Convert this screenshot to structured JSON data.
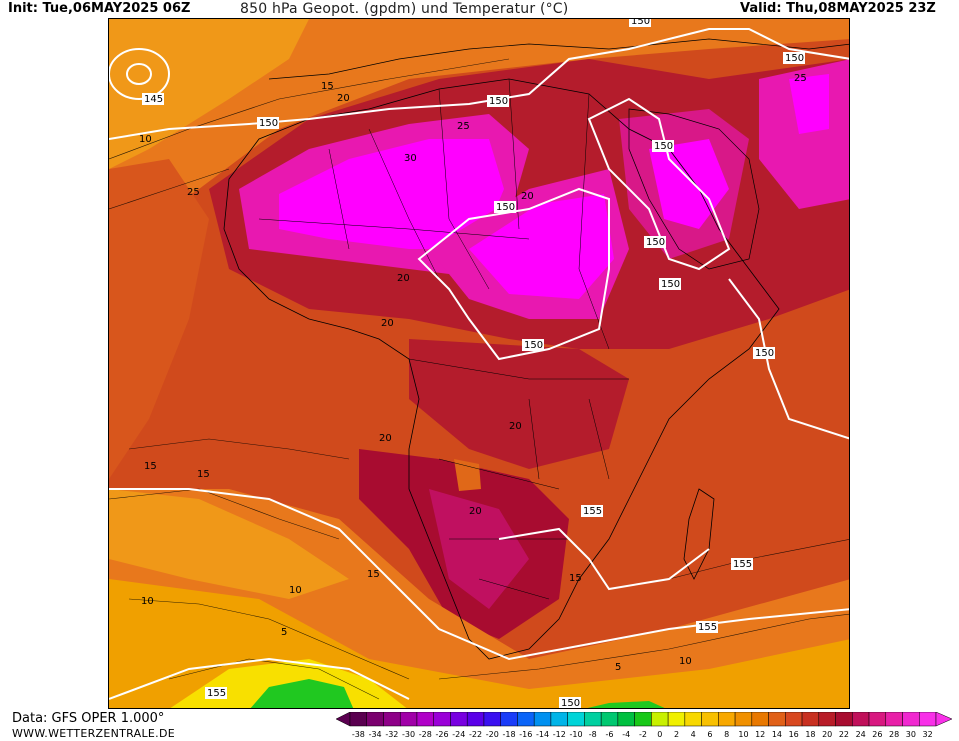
{
  "header": {
    "init": "Init: Tue,06MAY2025 06Z",
    "title": "850 hPa Geopot. (gpdm) und Temperatur (°C)",
    "valid": "Valid: Thu,08MAY2025 23Z"
  },
  "footer": {
    "data_source": "Data: GFS OPER 1.000°",
    "website": "WWW.WETTERZENTRALE.DE"
  },
  "geopotential_labels": [
    "145",
    "150",
    "150",
    "150",
    "150",
    "150",
    "150",
    "150",
    "150",
    "150",
    "150",
    "155",
    "155",
    "155",
    "155",
    "150"
  ],
  "temperature_labels": [
    "10",
    "15",
    "20",
    "25",
    "30",
    "25",
    "20",
    "20",
    "20",
    "20",
    "20",
    "20",
    "25",
    "15",
    "15",
    "15",
    "10",
    "10",
    "5",
    "5",
    "10",
    "15"
  ],
  "colorbar": {
    "ticks": [
      "-38",
      "-34",
      "-32",
      "-30",
      "-28",
      "-26",
      "-24",
      "-22",
      "-20",
      "-18",
      "-16",
      "-14",
      "-12",
      "-10",
      "-8",
      "-6",
      "-4",
      "-2",
      "0",
      "2",
      "4",
      "6",
      "8",
      "10",
      "12",
      "14",
      "16",
      "18",
      "20",
      "22",
      "24",
      "26",
      "28",
      "30",
      "32"
    ],
    "colors": [
      "#5a0050",
      "#7a006e",
      "#8e0088",
      "#a000a8",
      "#b000c8",
      "#9a00d8",
      "#7800e0",
      "#5a00e8",
      "#3a10f0",
      "#1a3cf8",
      "#0a64f8",
      "#0090f0",
      "#00b4e8",
      "#00d4d8",
      "#00d0a0",
      "#00c870",
      "#00c040",
      "#18c818",
      "#c8f000",
      "#f0f000",
      "#f8d800",
      "#f8c000",
      "#f8a800",
      "#f09000",
      "#e87800",
      "#e06018",
      "#d84820",
      "#c83020",
      "#b81c28",
      "#a80c30",
      "#c0105a",
      "#d81880",
      "#e820a8",
      "#f028d0",
      "#f830e8"
    ]
  },
  "colors": {
    "hot_core": "#ff00ff",
    "very_hot": "#d8108a",
    "hot": "#b01830",
    "warm": "#c84018",
    "mild": "#e06818",
    "cool": "#f0a000",
    "cold": "#f8e000",
    "green_zone": "#20c820",
    "contour": "#ffffff"
  }
}
